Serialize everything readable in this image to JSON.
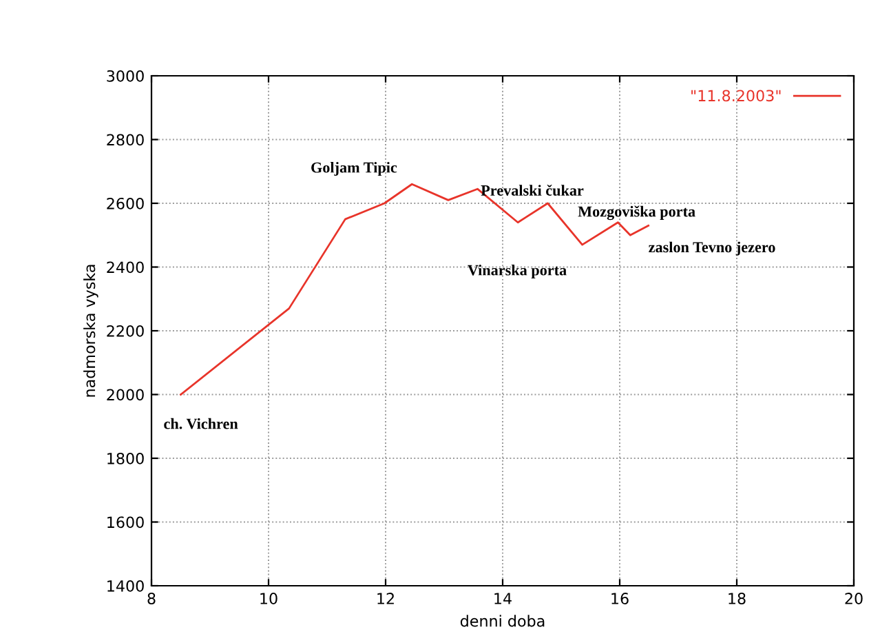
{
  "chart_data": {
    "type": "line",
    "xlabel": "denni doba",
    "ylabel": "nadmorska vyska",
    "xlim": [
      8,
      20
    ],
    "ylim": [
      1400,
      3000
    ],
    "xticks": [
      8,
      10,
      12,
      14,
      16,
      18,
      20
    ],
    "yticks": [
      1400,
      1600,
      1800,
      2000,
      2200,
      2400,
      2600,
      2800,
      3000
    ],
    "grid": true,
    "legend": "top right",
    "marker": "none",
    "line_style": "solid",
    "series": [
      {
        "name": "\"11.8.2003\"",
        "color": "#e8342a",
        "x": [
          8.5,
          10.35,
          11.31,
          11.98,
          12.45,
          13.07,
          13.57,
          14.26,
          14.77,
          15.36,
          15.97,
          16.18,
          16.49
        ],
        "values": [
          2000,
          2270,
          2550,
          2600,
          2660,
          2610,
          2645,
          2540,
          2600,
          2470,
          2540,
          2500,
          2530
        ]
      }
    ],
    "annotations": [
      {
        "text": "ch. Vichren",
        "x": 8.5,
        "y": 2000
      },
      {
        "text": "Goljam Tipic",
        "x": 12.45,
        "y": 2660
      },
      {
        "text": "Prevalski čukar",
        "x": 14.77,
        "y": 2600
      },
      {
        "text": "Mozgoviška porta",
        "x": 15.97,
        "y": 2540
      },
      {
        "text": "zaslon Tevno jezero",
        "x": 16.49,
        "y": 2530
      },
      {
        "text": "Vinarska porta",
        "x": 15.36,
        "y": 2470
      }
    ]
  }
}
